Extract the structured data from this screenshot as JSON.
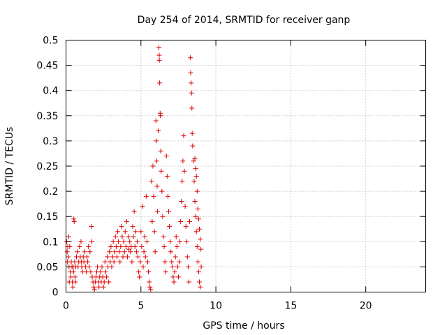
{
  "chart_data": {
    "type": "scatter",
    "title": "Day 254 of 2014, SRMTID for receiver ganp",
    "xlabel": "GPS time / hours",
    "ylabel": "SRMTID / TECUs",
    "xlim": [
      0,
      24
    ],
    "ylim": [
      0,
      0.5
    ],
    "x_ticks": [
      0,
      5,
      10,
      15,
      20
    ],
    "x_tick_labels": [
      "0",
      "5",
      "10",
      "15",
      "20"
    ],
    "y_ticks": [
      0,
      0.05,
      0.1,
      0.15,
      0.2,
      0.25,
      0.3,
      0.35,
      0.4,
      0.45,
      0.5
    ],
    "y_tick_labels": [
      "0",
      "0.05",
      "0.1",
      "0.15",
      "0.2",
      "0.25",
      "0.3",
      "0.35",
      "0.4",
      "0.45",
      "0.5"
    ],
    "grid": true,
    "marker": "+",
    "series": [
      {
        "name": "SRMTID",
        "color": "#dd0000",
        "points": [
          [
            0.05,
            0.1
          ],
          [
            0.08,
            0.08
          ],
          [
            0.1,
            0.06
          ],
          [
            0.12,
            0.09
          ],
          [
            0.15,
            0.07
          ],
          [
            0.18,
            0.11
          ],
          [
            0.2,
            0.05
          ],
          [
            0.22,
            0.02
          ],
          [
            0.25,
            0.09
          ],
          [
            0.3,
            0.04
          ],
          [
            0.32,
            0.03
          ],
          [
            0.35,
            0.06
          ],
          [
            0.4,
            0.05
          ],
          [
            0.42,
            0.02
          ],
          [
            0.45,
            0.01
          ],
          [
            0.48,
            0.05
          ],
          [
            0.5,
            0.04
          ],
          [
            0.52,
            0.145
          ],
          [
            0.55,
            0.14
          ],
          [
            0.58,
            0.06
          ],
          [
            0.6,
            0.03
          ],
          [
            0.62,
            0.02
          ],
          [
            0.65,
            0.05
          ],
          [
            0.7,
            0.07
          ],
          [
            0.75,
            0.08
          ],
          [
            0.8,
            0.05
          ],
          [
            0.85,
            0.06
          ],
          [
            0.9,
            0.09
          ],
          [
            0.95,
            0.07
          ],
          [
            1.0,
            0.1
          ],
          [
            1.02,
            0.06
          ],
          [
            1.05,
            0.05
          ],
          [
            1.1,
            0.04
          ],
          [
            1.15,
            0.07
          ],
          [
            1.2,
            0.06
          ],
          [
            1.25,
            0.08
          ],
          [
            1.3,
            0.05
          ],
          [
            1.35,
            0.04
          ],
          [
            1.4,
            0.07
          ],
          [
            1.45,
            0.06
          ],
          [
            1.5,
            0.09
          ],
          [
            1.55,
            0.05
          ],
          [
            1.6,
            0.08
          ],
          [
            1.65,
            0.04
          ],
          [
            1.7,
            0.13
          ],
          [
            1.72,
            0.1
          ],
          [
            1.75,
            0.03
          ],
          [
            1.8,
            0.02
          ],
          [
            1.85,
            0.01
          ],
          [
            1.9,
            0.005
          ],
          [
            1.95,
            0.02
          ],
          [
            2.0,
            0.03
          ],
          [
            2.05,
            0.04
          ],
          [
            2.1,
            0.05
          ],
          [
            2.15,
            0.02
          ],
          [
            2.2,
            0.01
          ],
          [
            2.25,
            0.03
          ],
          [
            2.3,
            0.04
          ],
          [
            2.35,
            0.02
          ],
          [
            2.4,
            0.05
          ],
          [
            2.45,
            0.03
          ],
          [
            2.5,
            0.01
          ],
          [
            2.55,
            0.02
          ],
          [
            2.6,
            0.06
          ],
          [
            2.65,
            0.04
          ],
          [
            2.7,
            0.03
          ],
          [
            2.75,
            0.07
          ],
          [
            2.8,
            0.05
          ],
          [
            2.85,
            0.02
          ],
          [
            2.9,
            0.08
          ],
          [
            2.95,
            0.06
          ],
          [
            3.0,
            0.09
          ],
          [
            3.05,
            0.05
          ],
          [
            3.1,
            0.07
          ],
          [
            3.15,
            0.1
          ],
          [
            3.2,
            0.06
          ],
          [
            3.25,
            0.08
          ],
          [
            3.3,
            0.11
          ],
          [
            3.35,
            0.09
          ],
          [
            3.4,
            0.07
          ],
          [
            3.45,
            0.12
          ],
          [
            3.5,
            0.1
          ],
          [
            3.55,
            0.08
          ],
          [
            3.6,
            0.06
          ],
          [
            3.65,
            0.09
          ],
          [
            3.7,
            0.13
          ],
          [
            3.75,
            0.11
          ],
          [
            3.8,
            0.07
          ],
          [
            3.85,
            0.1
          ],
          [
            3.9,
            0.08
          ],
          [
            3.95,
            0.12
          ],
          [
            4.0,
            0.09
          ],
          [
            4.05,
            0.14
          ],
          [
            4.1,
            0.07
          ],
          [
            4.15,
            0.11
          ],
          [
            4.2,
            0.085
          ],
          [
            4.25,
            0.1
          ],
          [
            4.3,
            0.08
          ],
          [
            4.35,
            0.09
          ],
          [
            4.4,
            0.06
          ],
          [
            4.45,
            0.13
          ],
          [
            4.5,
            0.11
          ],
          [
            4.55,
            0.16
          ],
          [
            4.6,
            0.09
          ],
          [
            4.65,
            0.12
          ],
          [
            4.7,
            0.08
          ],
          [
            4.75,
            0.1
          ],
          [
            4.8,
            0.07
          ],
          [
            4.85,
            0.04
          ],
          [
            4.9,
            0.03
          ],
          [
            4.95,
            0.06
          ],
          [
            5.0,
            0.12
          ],
          [
            5.05,
            0.09
          ],
          [
            5.1,
            0.17
          ],
          [
            5.15,
            0.05
          ],
          [
            5.2,
            0.08
          ],
          [
            5.25,
            0.11
          ],
          [
            5.3,
            0.07
          ],
          [
            5.35,
            0.19
          ],
          [
            5.4,
            0.1
          ],
          [
            5.45,
            0.06
          ],
          [
            5.5,
            0.04
          ],
          [
            5.55,
            0.02
          ],
          [
            5.6,
            0.01
          ],
          [
            5.65,
            0.005
          ],
          [
            5.7,
            0.22
          ],
          [
            5.75,
            0.14
          ],
          [
            5.8,
            0.25
          ],
          [
            5.85,
            0.19
          ],
          [
            5.9,
            0.12
          ],
          [
            5.95,
            0.08
          ],
          [
            6.0,
            0.34
          ],
          [
            6.02,
            0.3
          ],
          [
            6.05,
            0.26
          ],
          [
            6.08,
            0.21
          ],
          [
            6.1,
            0.16
          ],
          [
            6.15,
            0.32
          ],
          [
            6.2,
            0.485
          ],
          [
            6.22,
            0.47
          ],
          [
            6.23,
            0.46
          ],
          [
            6.25,
            0.415
          ],
          [
            6.28,
            0.355
          ],
          [
            6.3,
            0.35
          ],
          [
            6.32,
            0.28
          ],
          [
            6.35,
            0.24
          ],
          [
            6.4,
            0.2
          ],
          [
            6.45,
            0.15
          ],
          [
            6.5,
            0.11
          ],
          [
            6.55,
            0.09
          ],
          [
            6.6,
            0.06
          ],
          [
            6.65,
            0.04
          ],
          [
            6.7,
            0.27
          ],
          [
            6.75,
            0.23
          ],
          [
            6.8,
            0.19
          ],
          [
            6.85,
            0.16
          ],
          [
            6.9,
            0.13
          ],
          [
            6.95,
            0.1
          ],
          [
            7.0,
            0.08
          ],
          [
            7.05,
            0.06
          ],
          [
            7.1,
            0.05
          ],
          [
            7.15,
            0.03
          ],
          [
            7.2,
            0.02
          ],
          [
            7.25,
            0.04
          ],
          [
            7.3,
            0.07
          ],
          [
            7.35,
            0.11
          ],
          [
            7.4,
            0.09
          ],
          [
            7.45,
            0.05
          ],
          [
            7.5,
            0.03
          ],
          [
            7.55,
            0.06
          ],
          [
            7.6,
            0.1
          ],
          [
            7.65,
            0.14
          ],
          [
            7.7,
            0.18
          ],
          [
            7.75,
            0.22
          ],
          [
            7.8,
            0.26
          ],
          [
            7.85,
            0.31
          ],
          [
            7.9,
            0.24
          ],
          [
            7.95,
            0.17
          ],
          [
            8.0,
            0.13
          ],
          [
            8.05,
            0.1
          ],
          [
            8.1,
            0.07
          ],
          [
            8.15,
            0.05
          ],
          [
            8.2,
            0.02
          ],
          [
            8.25,
            0.14
          ],
          [
            8.3,
            0.465
          ],
          [
            8.32,
            0.435
          ],
          [
            8.35,
            0.415
          ],
          [
            8.38,
            0.395
          ],
          [
            8.4,
            0.365
          ],
          [
            8.42,
            0.315
          ],
          [
            8.45,
            0.29
          ],
          [
            8.5,
            0.26
          ],
          [
            8.55,
            0.22
          ],
          [
            8.6,
            0.18
          ],
          [
            8.65,
            0.15
          ],
          [
            8.7,
            0.12
          ],
          [
            8.75,
            0.09
          ],
          [
            8.8,
            0.06
          ],
          [
            8.85,
            0.04
          ],
          [
            8.9,
            0.02
          ],
          [
            8.95,
            0.01
          ],
          [
            8.6,
            0.265
          ],
          [
            8.65,
            0.245
          ],
          [
            8.7,
            0.23
          ],
          [
            8.75,
            0.2
          ],
          [
            8.8,
            0.165
          ],
          [
            8.85,
            0.145
          ],
          [
            8.9,
            0.125
          ],
          [
            8.95,
            0.105
          ],
          [
            9.0,
            0.085
          ],
          [
            9.02,
            0.05
          ]
        ]
      }
    ]
  }
}
